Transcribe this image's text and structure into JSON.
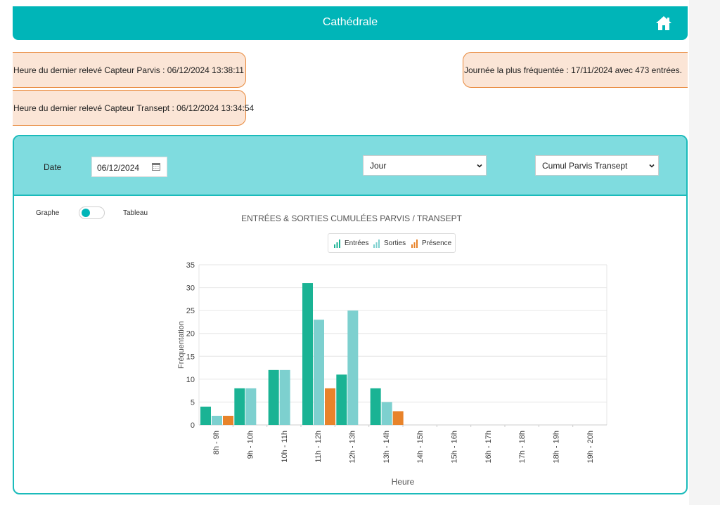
{
  "header": {
    "title": "Cathédrale"
  },
  "info": {
    "parvis": "Heure du dernier relevé Capteur Parvis : 06/12/2024 13:38:11",
    "transept": "Heure du dernier relevé Capteur Transept : 06/12/2024 13:34:54",
    "busiest": "Journée la plus fréquentée : 17/11/2024 avec 473 entrées."
  },
  "filters": {
    "date_label": "Date",
    "date_value": "06/12/2024",
    "period_selected": "Jour",
    "source_selected": "Cumul Parvis Transept"
  },
  "toggle": {
    "left_label": "Graphe",
    "right_label": "Tableau",
    "state": "Graphe"
  },
  "colors": {
    "accent": "#00b5b8",
    "entrees": "#1ab394",
    "sorties": "#7dd0cf",
    "presence": "#e8832a",
    "info_bg": "#fbe5d6",
    "info_border": "#e8883a"
  },
  "icons": {
    "home": "home-icon",
    "calendar": "calendar-icon",
    "dropdown": "chevron-down-icon"
  },
  "chart_data": {
    "type": "bar",
    "title": "ENTRÉES & SORTIES CUMULÉES PARVIS / TRANSEPT",
    "xlabel": "Heure",
    "ylabel": "Fréquentation",
    "ylim": [
      0,
      35
    ],
    "yticks": [
      0,
      5,
      10,
      15,
      20,
      25,
      30,
      35
    ],
    "grid": true,
    "legend_position": "top-center",
    "categories": [
      "8h - 9h",
      "9h - 10h",
      "10h - 11h",
      "11h - 12h",
      "12h - 13h",
      "13h - 14h",
      "14h - 15h",
      "15h - 16h",
      "16h - 17h",
      "17h - 18h",
      "18h - 19h",
      "19h - 20h"
    ],
    "series": [
      {
        "name": "Entrées",
        "color": "#1ab394",
        "values": [
          4,
          8,
          12,
          31,
          11,
          8,
          0,
          0,
          0,
          0,
          0,
          0
        ]
      },
      {
        "name": "Sorties",
        "color": "#7dd0cf",
        "values": [
          2,
          8,
          12,
          23,
          25,
          5,
          0,
          0,
          0,
          0,
          0,
          0
        ]
      },
      {
        "name": "Présence",
        "color": "#e8832a",
        "values": [
          2,
          0,
          0,
          8,
          0,
          3,
          0,
          0,
          0,
          0,
          0,
          0
        ]
      }
    ]
  }
}
